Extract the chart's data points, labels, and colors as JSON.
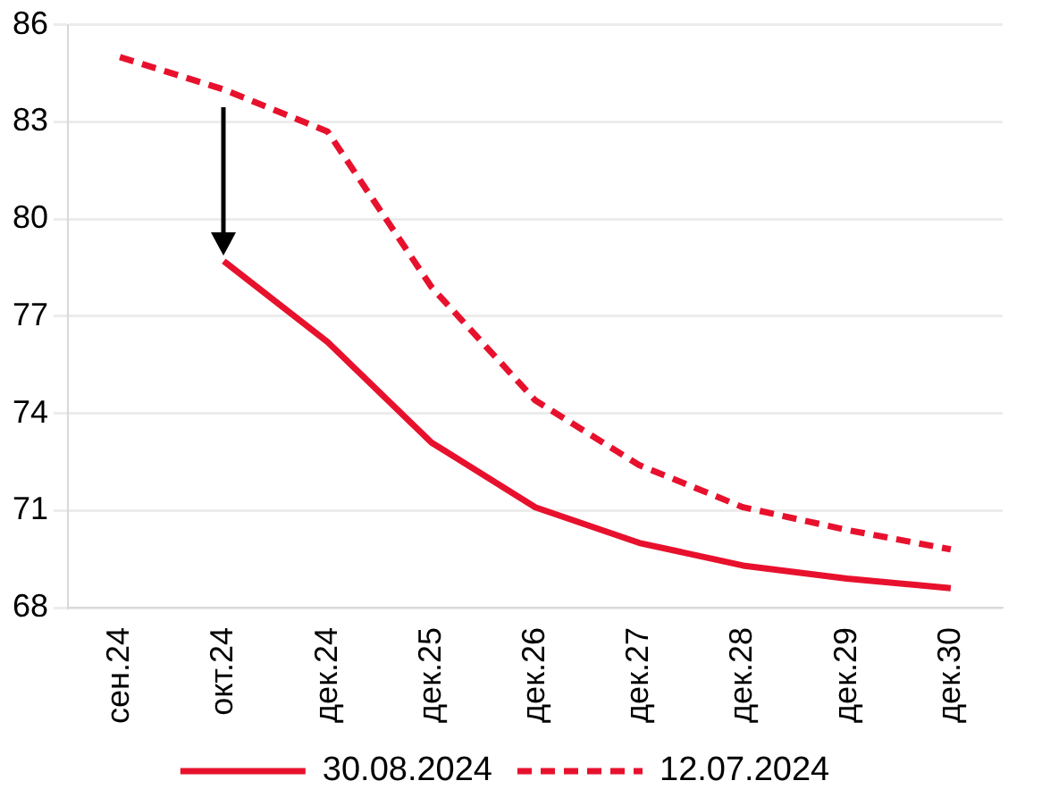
{
  "chart_data": {
    "type": "line",
    "categories": [
      "сен.24",
      "окт.24",
      "дек.24",
      "дек.25",
      "дек.26",
      "дек.27",
      "дек.28",
      "дек.29",
      "дек.30"
    ],
    "series": [
      {
        "name": "30.08.2024",
        "color": "#e8112d",
        "line_style": "solid",
        "values": [
          null,
          78.7,
          76.2,
          73.1,
          71.1,
          70.0,
          69.3,
          68.9,
          68.6
        ]
      },
      {
        "name": "12.07.2024",
        "color": "#e8112d",
        "line_style": "dashed",
        "values": [
          85.0,
          84.0,
          82.7,
          77.9,
          74.4,
          72.4,
          71.1,
          70.4,
          69.8
        ]
      }
    ],
    "ylim": [
      68,
      86
    ],
    "yticks": [
      68,
      71,
      74,
      77,
      80,
      83,
      86
    ],
    "grid": "y",
    "legend": "bottom",
    "marker": "none"
  }
}
